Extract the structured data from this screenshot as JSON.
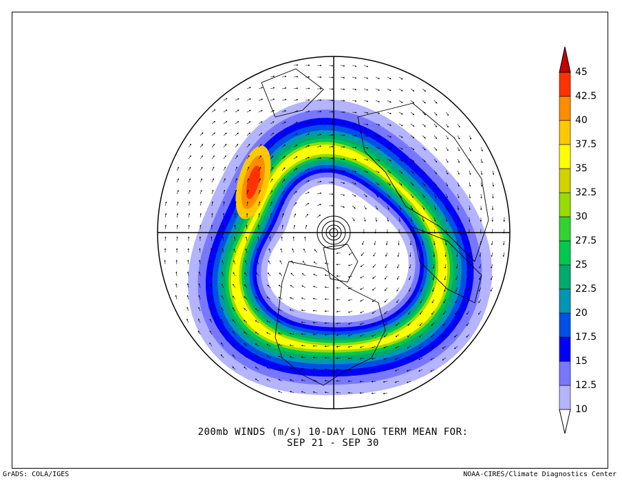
{
  "caption": {
    "line1": "200mb WINDS (m/s)   10-DAY LONG TERM MEAN FOR:",
    "line2": "SEP 21 - SEP 30"
  },
  "footer": {
    "left": "GrADS: COLA/IGES",
    "right": "NOAA-CIRES/Climate Diagnostics Center"
  },
  "colorbar": {
    "levels": [
      "10",
      "12.5",
      "15",
      "17.5",
      "20",
      "22.5",
      "25",
      "27.5",
      "30",
      "32.5",
      "35",
      "37.5",
      "40",
      "42.5",
      "45"
    ],
    "colors": [
      "#ffffff",
      "#b4b4ff",
      "#7878ff",
      "#0000ff",
      "#0050e6",
      "#0096b4",
      "#00aa6e",
      "#00c850",
      "#32d232",
      "#96dc00",
      "#d2d200",
      "#ffff00",
      "#ffc800",
      "#ff8c00",
      "#ff3200",
      "#c80000"
    ]
  },
  "map": {
    "projection": "north polar stereographic",
    "field": "200mb wind speed (m/s) with wind vectors"
  }
}
